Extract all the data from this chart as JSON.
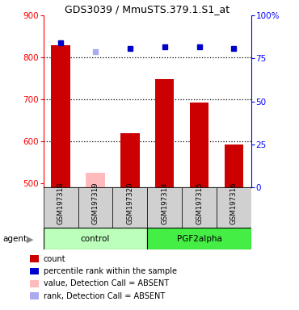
{
  "title": "GDS3039 / MmuSTS.379.1.S1_at",
  "samples": [
    "GSM197318",
    "GSM197319",
    "GSM197320",
    "GSM197314",
    "GSM197315",
    "GSM197316"
  ],
  "bar_values": [
    830,
    null,
    620,
    748,
    693,
    592
  ],
  "bar_values_absent": [
    null,
    525,
    null,
    null,
    null,
    null
  ],
  "percentile_values": [
    84,
    null,
    81,
    82,
    82,
    81
  ],
  "percentile_absent": [
    null,
    79,
    null,
    null,
    null,
    null
  ],
  "bar_color": "#cc0000",
  "bar_color_absent": "#ffbbbb",
  "percentile_color": "#0000cc",
  "percentile_color_absent": "#aaaaee",
  "ylim_left": [
    490,
    900
  ],
  "ylim_right": [
    0,
    100
  ],
  "yticks_left": [
    500,
    600,
    700,
    800,
    900
  ],
  "yticks_right": [
    0,
    25,
    50,
    75,
    100
  ],
  "ytick_labels_right": [
    "0",
    "25",
    "50",
    "75",
    "100%"
  ],
  "ctrl_color": "#bbffbb",
  "pgf_color": "#44ee44",
  "bar_width": 0.55,
  "dotted_lines": [
    600,
    700,
    800
  ],
  "legend_items": [
    {
      "label": "count",
      "color": "#cc0000"
    },
    {
      "label": "percentile rank within the sample",
      "color": "#0000cc"
    },
    {
      "label": "value, Detection Call = ABSENT",
      "color": "#ffbbbb"
    },
    {
      "label": "rank, Detection Call = ABSENT",
      "color": "#aaaaee"
    }
  ]
}
